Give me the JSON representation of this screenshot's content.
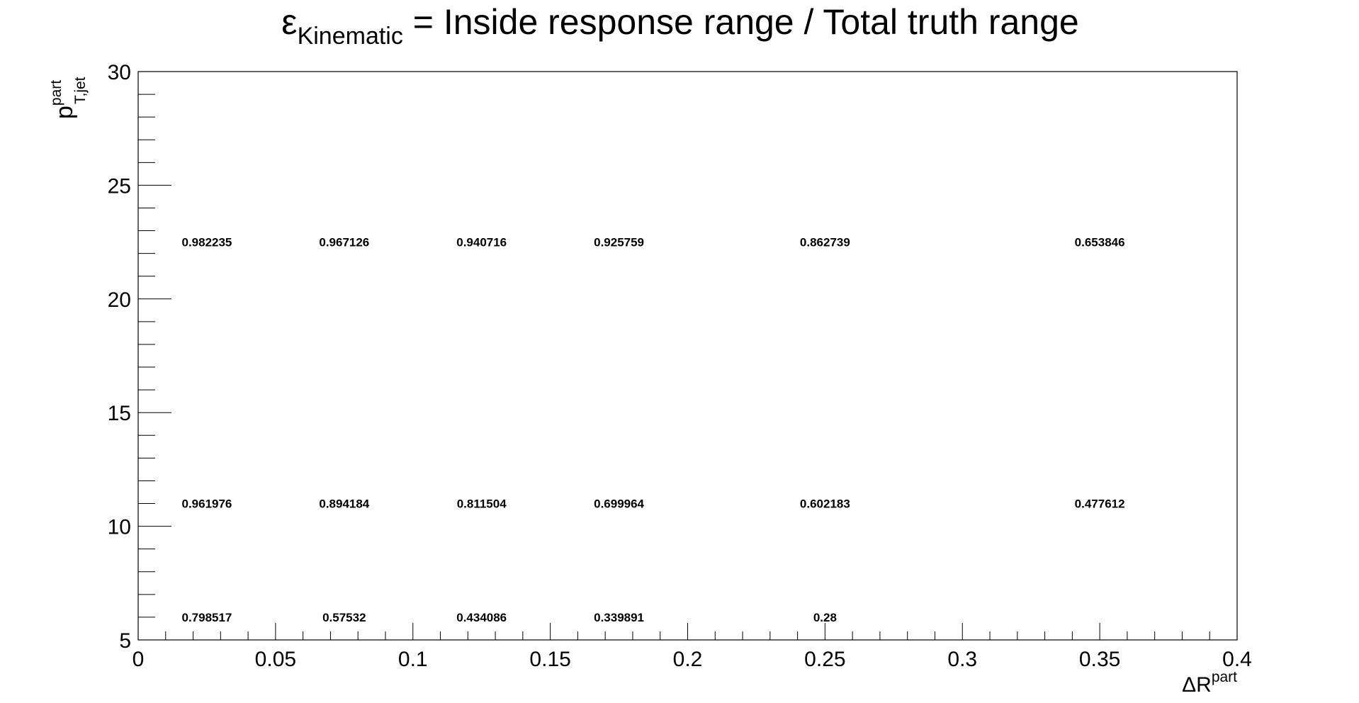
{
  "chart_data": {
    "type": "table",
    "title": {
      "symbol": "ε",
      "subscript": "Kinematic",
      "rest": " = Inside response range / Total truth range"
    },
    "xlabel": {
      "base": "ΔR",
      "sup": "part"
    },
    "ylabel": {
      "base": "p",
      "sup": "part",
      "sub": "T,jet"
    },
    "xlim": [
      0,
      0.4
    ],
    "ylim": [
      5,
      30
    ],
    "x_ticks": [
      "0",
      "0.05",
      "0.1",
      "0.15",
      "0.2",
      "0.25",
      "0.3",
      "0.35",
      "0.4"
    ],
    "y_ticks": [
      "5",
      "10",
      "15",
      "20",
      "25",
      "30"
    ],
    "grid": false,
    "cells": [
      {
        "x": 0.025,
        "y": 22.5,
        "label": "0.982235"
      },
      {
        "x": 0.075,
        "y": 22.5,
        "label": "0.967126"
      },
      {
        "x": 0.125,
        "y": 22.5,
        "label": "0.940716"
      },
      {
        "x": 0.175,
        "y": 22.5,
        "label": "0.925759"
      },
      {
        "x": 0.25,
        "y": 22.5,
        "label": "0.862739"
      },
      {
        "x": 0.35,
        "y": 22.5,
        "label": "0.653846"
      },
      {
        "x": 0.025,
        "y": 11,
        "label": "0.961976"
      },
      {
        "x": 0.075,
        "y": 11,
        "label": "0.894184"
      },
      {
        "x": 0.125,
        "y": 11,
        "label": "0.811504"
      },
      {
        "x": 0.175,
        "y": 11,
        "label": "0.699964"
      },
      {
        "x": 0.25,
        "y": 11,
        "label": "0.602183"
      },
      {
        "x": 0.35,
        "y": 11,
        "label": "0.477612"
      },
      {
        "x": 0.025,
        "y": 6,
        "label": "0.798517"
      },
      {
        "x": 0.075,
        "y": 6,
        "label": "0.57532"
      },
      {
        "x": 0.125,
        "y": 6,
        "label": "0.434086"
      },
      {
        "x": 0.175,
        "y": 6,
        "label": "0.339891"
      },
      {
        "x": 0.25,
        "y": 6,
        "label": "0.28"
      }
    ]
  }
}
